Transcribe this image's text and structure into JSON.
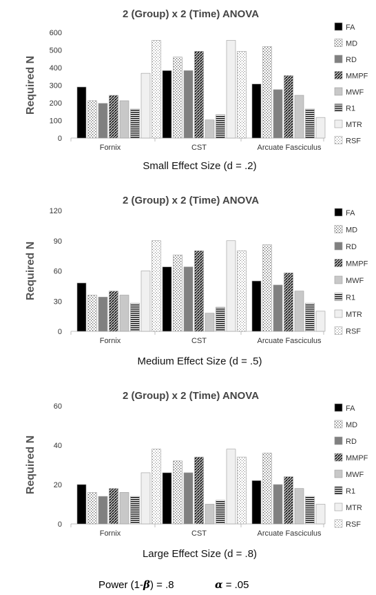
{
  "colors": {
    "FA": "#000000",
    "MD": "#ffffff",
    "RD": "#808080",
    "MMPF": "#4d4d4d",
    "MWF": "#c8c8c8",
    "R1": "#3a3a3a",
    "MTR": "#f0f0f0",
    "RSF": "#ffffff"
  },
  "footer": {
    "power_label": "Power (1-",
    "power_beta": "β",
    "power_value": ") = .8",
    "alpha_symbol": "α",
    "alpha_value": " = .05"
  },
  "chart_data": [
    {
      "type": "bar",
      "title": "2 (Group) x 2 (Time) ANOVA",
      "xlabel": "Small Effect Size (d = .2)",
      "ylabel": "Required N",
      "ylim": [
        0,
        600
      ],
      "yticks": [
        0,
        100,
        200,
        300,
        400,
        500,
        600
      ],
      "categories": [
        "Fornix",
        "CST",
        "Arcuate Fasciculus"
      ],
      "legend_position": "right",
      "series": [
        {
          "name": "FA",
          "values": [
            290,
            383,
            307
          ]
        },
        {
          "name": "MD",
          "values": [
            212,
            460,
            520
          ]
        },
        {
          "name": "RD",
          "values": [
            197,
            383,
            275
          ]
        },
        {
          "name": "MMPF",
          "values": [
            243,
            493,
            355
          ]
        },
        {
          "name": "MWF",
          "values": [
            212,
            103,
            243
          ]
        },
        {
          "name": "R1",
          "values": [
            165,
            133,
            165
          ]
        },
        {
          "name": "MTR",
          "values": [
            368,
            555,
            117
          ]
        },
        {
          "name": "RSF",
          "values": [
            555,
            493,
            0
          ]
        }
      ]
    },
    {
      "type": "bar",
      "title": "2 (Group) x 2 (Time) ANOVA",
      "xlabel": "Medium Effect Size (d = .5)",
      "ylabel": "Required N",
      "ylim": [
        0,
        120
      ],
      "yticks": [
        0,
        30,
        60,
        90,
        120
      ],
      "categories": [
        "Fornix",
        "CST",
        "Arcuate Fasciculus"
      ],
      "legend_position": "right",
      "series": [
        {
          "name": "FA",
          "values": [
            48,
            64,
            50
          ]
        },
        {
          "name": "MD",
          "values": [
            36,
            76,
            86
          ]
        },
        {
          "name": "RD",
          "values": [
            34,
            64,
            46
          ]
        },
        {
          "name": "MMPF",
          "values": [
            40,
            80,
            58
          ]
        },
        {
          "name": "MWF",
          "values": [
            36,
            18,
            40
          ]
        },
        {
          "name": "R1",
          "values": [
            28,
            24,
            28
          ]
        },
        {
          "name": "MTR",
          "values": [
            60,
            90,
            20
          ]
        },
        {
          "name": "RSF",
          "values": [
            90,
            80,
            0
          ]
        }
      ]
    },
    {
      "type": "bar",
      "title": "2 (Group) x 2 (Time) ANOVA",
      "xlabel": "Large Effect Size (d = .8)",
      "ylabel": "Required N",
      "ylim": [
        0,
        60
      ],
      "yticks": [
        0,
        20,
        40,
        60
      ],
      "categories": [
        "Fornix",
        "CST",
        "Arcuate Fasciculus"
      ],
      "legend_position": "right",
      "series": [
        {
          "name": "FA",
          "values": [
            20,
            26,
            22
          ]
        },
        {
          "name": "MD",
          "values": [
            16,
            32,
            36
          ]
        },
        {
          "name": "RD",
          "values": [
            14,
            26,
            20
          ]
        },
        {
          "name": "MMPF",
          "values": [
            18,
            34,
            24
          ]
        },
        {
          "name": "MWF",
          "values": [
            16,
            10,
            18
          ]
        },
        {
          "name": "R1",
          "values": [
            14,
            12,
            14
          ]
        },
        {
          "name": "MTR",
          "values": [
            26,
            38,
            10
          ]
        },
        {
          "name": "RSF",
          "values": [
            38,
            34,
            0
          ]
        }
      ]
    }
  ]
}
